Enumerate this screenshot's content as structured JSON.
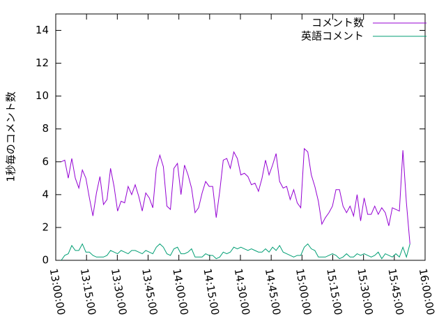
{
  "chart_data": {
    "type": "line",
    "ylabel": "1秒毎のコメント数",
    "x": [
      "13:02:40",
      "13:04:23",
      "13:06:06",
      "13:07:49",
      "13:09:32",
      "13:11:15",
      "13:12:58",
      "13:14:41",
      "13:16:24",
      "13:18:07",
      "13:19:50",
      "13:21:33",
      "13:23:16",
      "13:24:59",
      "13:26:42",
      "13:28:25",
      "13:30:08",
      "13:31:51",
      "13:33:34",
      "13:35:17",
      "13:37:00",
      "13:38:43",
      "13:40:26",
      "13:42:09",
      "13:43:52",
      "13:45:35",
      "13:47:18",
      "13:49:01",
      "13:50:44",
      "13:52:27",
      "13:54:10",
      "13:55:53",
      "13:57:36",
      "13:59:19",
      "14:01:02",
      "14:02:45",
      "14:04:28",
      "14:06:11",
      "14:07:54",
      "14:09:37",
      "14:11:20",
      "14:13:03",
      "14:14:46",
      "14:16:29",
      "14:18:12",
      "14:19:55",
      "14:21:38",
      "14:23:21",
      "14:25:04",
      "14:26:47",
      "14:28:30",
      "14:30:13",
      "14:31:56",
      "14:33:39",
      "14:35:22",
      "14:37:05",
      "14:38:48",
      "14:40:31",
      "14:42:14",
      "14:43:57",
      "14:45:40",
      "14:47:23",
      "14:49:06",
      "14:50:49",
      "14:52:32",
      "14:54:15",
      "14:55:58",
      "14:57:41",
      "14:59:24",
      "15:01:07",
      "15:02:50",
      "15:04:33",
      "15:06:16",
      "15:07:59",
      "15:09:42",
      "15:11:25",
      "15:13:08",
      "15:14:51",
      "15:16:34",
      "15:18:17",
      "15:20:00",
      "15:21:43",
      "15:23:26",
      "15:25:09",
      "15:26:52",
      "15:28:35",
      "15:30:18",
      "15:32:01",
      "15:33:44",
      "15:35:27",
      "15:37:10",
      "15:38:53",
      "15:40:36",
      "15:42:19",
      "15:44:02",
      "15:45:45",
      "15:47:28",
      "15:49:11",
      "15:50:54",
      "15:52:37"
    ],
    "series": [
      {
        "name": "コメント数",
        "color": "#9400d3",
        "values": [
          6.0,
          6.1,
          5.0,
          6.2,
          5.0,
          4.4,
          5.5,
          5.0,
          3.8,
          2.7,
          4.1,
          5.1,
          3.4,
          3.7,
          5.6,
          4.5,
          3.0,
          3.6,
          3.5,
          4.5,
          4.0,
          4.6,
          3.9,
          3.0,
          4.1,
          3.8,
          3.2,
          5.6,
          6.4,
          5.7,
          3.3,
          3.1,
          5.6,
          5.9,
          4.0,
          5.8,
          5.2,
          4.4,
          2.9,
          3.2,
          4.1,
          4.8,
          4.5,
          4.5,
          2.6,
          4.2,
          6.1,
          6.2,
          5.6,
          6.6,
          6.2,
          5.2,
          5.3,
          5.1,
          4.6,
          4.7,
          4.2,
          5.0,
          6.1,
          5.2,
          5.8,
          6.5,
          4.8,
          4.4,
          4.5,
          3.7,
          4.3,
          3.5,
          3.2,
          6.8,
          6.6,
          5.2,
          4.5,
          3.6,
          2.2,
          2.6,
          2.9,
          3.3,
          4.3,
          4.3,
          3.3,
          2.9,
          3.3,
          2.7,
          4.0,
          2.4,
          3.8,
          2.8,
          2.8,
          3.3,
          2.8,
          3.2,
          2.9,
          2.1,
          3.2,
          3.1,
          3.0,
          6.7,
          3.5,
          1.0
        ]
      },
      {
        "name": "英語コメント",
        "color": "#009e73",
        "values": [
          0,
          0.3,
          0.4,
          0.9,
          0.6,
          0.6,
          1.0,
          0.5,
          0.5,
          0.3,
          0.2,
          0.2,
          0.2,
          0.3,
          0.6,
          0.5,
          0.4,
          0.6,
          0.5,
          0.4,
          0.6,
          0.6,
          0.5,
          0.4,
          0.6,
          0.5,
          0.4,
          0.8,
          1.0,
          0.8,
          0.4,
          0.3,
          0.7,
          0.8,
          0.4,
          0.4,
          0.5,
          0.7,
          0.2,
          0.2,
          0.2,
          0.4,
          0.3,
          0.3,
          0.1,
          0.2,
          0.5,
          0.4,
          0.5,
          0.8,
          0.7,
          0.8,
          0.7,
          0.6,
          0.7,
          0.6,
          0.5,
          0.5,
          0.7,
          0.5,
          0.8,
          0.6,
          0.9,
          0.5,
          0.4,
          0.3,
          0.2,
          0.3,
          0.3,
          0.8,
          1.0,
          0.7,
          0.6,
          0.2,
          0.2,
          0.2,
          0.3,
          0.4,
          0.3,
          0.1,
          0.2,
          0.4,
          0.2,
          0.2,
          0.4,
          0.3,
          0.4,
          0.3,
          0.2,
          0.3,
          0.5,
          0.1,
          0.4,
          0.3,
          0.2,
          0.4,
          0.2,
          0.8,
          0.2,
          1.0
        ]
      }
    ],
    "xlim": [
      "13:00:00",
      "16:00:00"
    ],
    "xticks": [
      "13:00:00",
      "13:15:00",
      "13:30:00",
      "13:45:00",
      "14:00:00",
      "14:15:00",
      "14:30:00",
      "14:45:00",
      "15:00:00",
      "15:15:00",
      "15:30:00",
      "15:45:00",
      "16:00:00"
    ],
    "ylim": [
      0,
      15
    ],
    "yticks": [
      0,
      2,
      4,
      6,
      8,
      10,
      12,
      14
    ],
    "legend": "top-right"
  }
}
